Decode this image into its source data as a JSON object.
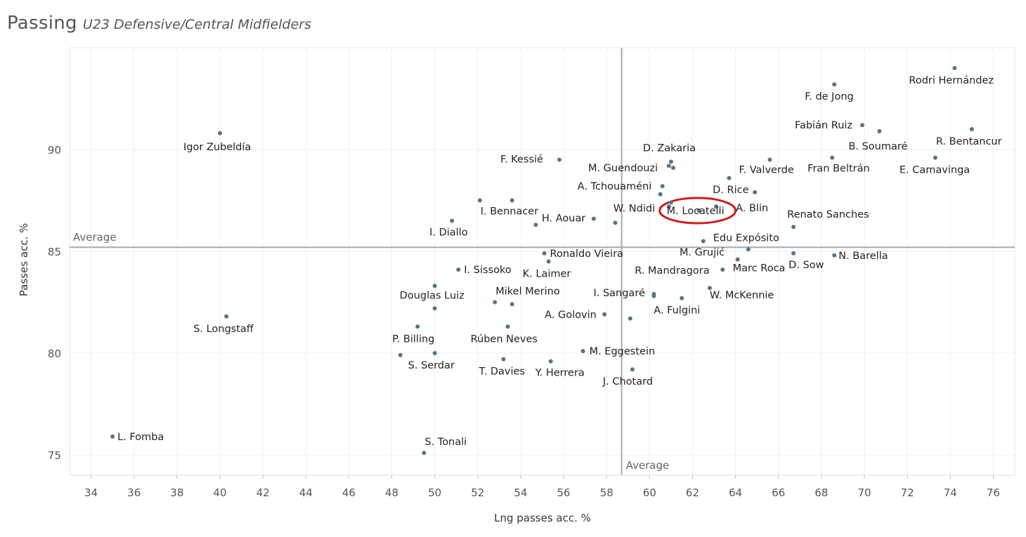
{
  "header": {
    "title": "Passing",
    "subtitle": "U23 Defensive/Central Midfielders"
  },
  "chart_data": {
    "type": "scatter",
    "xlabel": "Lng passes acc. %",
    "ylabel": "Passes acc. %",
    "xlim": [
      33,
      77
    ],
    "ylim": [
      74,
      95
    ],
    "x_ticks": [
      "34",
      "36",
      "38",
      "40",
      "42",
      "44",
      "46",
      "48",
      "50",
      "52",
      "54",
      "56",
      "58",
      "60",
      "62",
      "64",
      "66",
      "68",
      "70",
      "72",
      "74",
      "76"
    ],
    "y_ticks": [
      "75",
      "80",
      "85",
      "90"
    ],
    "grid": true,
    "reference_lines": {
      "x_average": 58.7,
      "y_average": 85.2,
      "x_label": "Average",
      "y_label": "Average"
    },
    "highlighted": "M. Locatelli",
    "colors": {
      "point": "#5b7386",
      "reference": "#aaaaaa",
      "highlight": "#cc1f1f",
      "grid": "#eeeeee"
    },
    "points": [
      {
        "name": "Rodri Hernández",
        "x": 74.2,
        "y": 94.0
      },
      {
        "name": "F. de Jong",
        "x": 68.6,
        "y": 93.2
      },
      {
        "name": "Fabián Ruiz",
        "x": 69.9,
        "y": 91.2
      },
      {
        "name": "B. Soumaré",
        "x": 70.7,
        "y": 90.9
      },
      {
        "name": "R. Bentancur",
        "x": 75.0,
        "y": 91.0
      },
      {
        "name": "Igor Zubeldía",
        "x": 40.0,
        "y": 90.8
      },
      {
        "name": "E. Camavinga",
        "x": 73.3,
        "y": 89.6
      },
      {
        "name": "Fran Beltrán",
        "x": 68.5,
        "y": 89.6
      },
      {
        "name": "F. Valverde",
        "x": 65.6,
        "y": 89.5
      },
      {
        "name": "D. Zakaria",
        "x": 61.0,
        "y": 89.4
      },
      {
        "name": "D. Zakaria",
        "x": 60.9,
        "y": 89.2
      },
      {
        "name": "M. Guendouzi",
        "x": 61.1,
        "y": 89.1
      },
      {
        "name": "F. Kessié",
        "x": 55.8,
        "y": 89.5
      },
      {
        "name": "F. Valverde",
        "x": 63.7,
        "y": 88.6
      },
      {
        "name": "A. Tchouaméni",
        "x": 60.6,
        "y": 88.2
      },
      {
        "name": "A. Tchouaméni",
        "x": 60.5,
        "y": 87.8
      },
      {
        "name": "D. Rice",
        "x": 64.9,
        "y": 87.9
      },
      {
        "name": "I. Bennacer",
        "x": 52.1,
        "y": 87.5
      },
      {
        "name": "I. Bennacer",
        "x": 53.6,
        "y": 87.5
      },
      {
        "name": "W. Ndidi",
        "x": 61.0,
        "y": 87.4
      },
      {
        "name": "W. Ndidi",
        "x": 60.9,
        "y": 87.2
      },
      {
        "name": "A. Blin",
        "x": 63.1,
        "y": 87.2
      },
      {
        "name": "I. Diallo",
        "x": 50.8,
        "y": 86.5
      },
      {
        "name": "H. Aouar",
        "x": 57.4,
        "y": 86.6
      },
      {
        "name": "H. Aouar",
        "x": 58.4,
        "y": 86.4
      },
      {
        "name": "H. Aouar",
        "x": 54.7,
        "y": 86.3
      },
      {
        "name": "Renato Sanches",
        "x": 66.7,
        "y": 86.2
      },
      {
        "name": "Edu Expósito",
        "x": 62.5,
        "y": 85.5
      },
      {
        "name": "M. Grujić",
        "x": 64.6,
        "y": 85.1
      },
      {
        "name": "Ronaldo Vieira",
        "x": 55.1,
        "y": 84.9
      },
      {
        "name": "D. Sow",
        "x": 66.7,
        "y": 84.9
      },
      {
        "name": "N. Barella",
        "x": 68.6,
        "y": 84.8
      },
      {
        "name": "Marc Roca",
        "x": 64.1,
        "y": 84.6
      },
      {
        "name": "K. Laimer",
        "x": 55.3,
        "y": 84.5
      },
      {
        "name": "R. Mandragora",
        "x": 63.4,
        "y": 84.1
      },
      {
        "name": "I. Sissoko",
        "x": 51.1,
        "y": 84.1
      },
      {
        "name": "Douglas Luiz",
        "x": 50.0,
        "y": 83.3
      },
      {
        "name": "W. McKennie",
        "x": 62.8,
        "y": 83.2
      },
      {
        "name": "I. Sangaré",
        "x": 60.2,
        "y": 82.9
      },
      {
        "name": "I. Sangaré",
        "x": 60.2,
        "y": 82.8
      },
      {
        "name": "A. Fulgini",
        "x": 61.5,
        "y": 82.7
      },
      {
        "name": "Mikel Merino",
        "x": 52.8,
        "y": 82.5
      },
      {
        "name": "Mikel Merino",
        "x": 53.6,
        "y": 82.4
      },
      {
        "name": "Douglas Luiz",
        "x": 50.0,
        "y": 82.2
      },
      {
        "name": "A. Golovin",
        "x": 57.9,
        "y": 81.9
      },
      {
        "name": "A. Golovin",
        "x": 59.1,
        "y": 81.7
      },
      {
        "name": "S. Longstaff",
        "x": 40.3,
        "y": 81.8
      },
      {
        "name": "Rúben Neves",
        "x": 53.4,
        "y": 81.3
      },
      {
        "name": "P. Billing",
        "x": 49.2,
        "y": 81.3
      },
      {
        "name": "M. Eggestein",
        "x": 56.9,
        "y": 80.1
      },
      {
        "name": "S. Serdar",
        "x": 50.0,
        "y": 80.0
      },
      {
        "name": "S. Serdar",
        "x": 48.4,
        "y": 79.9
      },
      {
        "name": "T. Davies",
        "x": 53.2,
        "y": 79.7
      },
      {
        "name": "Y. Herrera",
        "x": 55.4,
        "y": 79.6
      },
      {
        "name": "J. Chotard",
        "x": 59.2,
        "y": 79.2
      },
      {
        "name": "L. Fomba",
        "x": 35.0,
        "y": 75.9
      },
      {
        "name": "S. Tonali",
        "x": 49.5,
        "y": 75.1
      },
      {
        "name": "M. Locatelli",
        "x": 62.3,
        "y": 87.0
      }
    ],
    "labels": [
      {
        "text": "Rodri Hernández",
        "x": 74.2,
        "y": 94.0,
        "dx": -65,
        "dy": 22
      },
      {
        "text": "F. de Jong",
        "x": 68.6,
        "y": 93.2,
        "dx": -42,
        "dy": 22
      },
      {
        "text": "Fabián Ruiz",
        "x": 69.9,
        "y": 91.2,
        "dx": -96,
        "dy": 5
      },
      {
        "text": "B. Soumaré",
        "x": 70.7,
        "y": 90.9,
        "dx": -44,
        "dy": 26
      },
      {
        "text": "R. Bentancur",
        "x": 75.0,
        "y": 91.0,
        "dx": -51,
        "dy": 22
      },
      {
        "text": "Igor Zubeldía",
        "x": 40.0,
        "y": 90.8,
        "dx": -52,
        "dy": 24
      },
      {
        "text": "E. Camavinga",
        "x": 73.3,
        "y": 89.6,
        "dx": -51,
        "dy": 22
      },
      {
        "text": "Fran Beltrán",
        "x": 68.5,
        "y": 89.6,
        "dx": -35,
        "dy": 20
      },
      {
        "text": "F. Valverde",
        "x": 65.6,
        "y": 89.5,
        "dx": -44,
        "dy": 19
      },
      {
        "text": "D. Zakaria",
        "x": 61.0,
        "y": 89.4,
        "dx": -40,
        "dy": -15
      },
      {
        "text": "M. Guendouzi",
        "x": 61.1,
        "y": 89.1,
        "dx": -121,
        "dy": 5
      },
      {
        "text": "F. Kessié",
        "x": 55.8,
        "y": 89.5,
        "dx": -84,
        "dy": 4
      },
      {
        "text": "A. Tchouaméni",
        "x": 60.6,
        "y": 88.2,
        "dx": -121,
        "dy": 5
      },
      {
        "text": "D. Rice",
        "x": 64.9,
        "y": 87.9,
        "dx": -60,
        "dy": 1
      },
      {
        "text": "I. Bennacer",
        "x": 53.6,
        "y": 87.5,
        "dx": -45,
        "dy": 20
      },
      {
        "text": "W. Ndidi",
        "x": 61.0,
        "y": 87.4,
        "dx": -82,
        "dy": 13
      },
      {
        "text": "A. Blin",
        "x": 63.1,
        "y": 87.2,
        "dx": 28,
        "dy": 7
      },
      {
        "text": "I. Diallo",
        "x": 50.8,
        "y": 86.5,
        "dx": -32,
        "dy": 21
      },
      {
        "text": "H. Aouar",
        "x": 57.4,
        "y": 86.6,
        "dx": -74,
        "dy": 4
      },
      {
        "text": "Renato Sanches",
        "x": 66.7,
        "y": 86.2,
        "dx": -9,
        "dy": -13
      },
      {
        "text": "Edu Expósito",
        "x": 62.5,
        "y": 85.5,
        "dx": 14,
        "dy": 0
      },
      {
        "text": "M. Grujić",
        "x": 64.6,
        "y": 85.1,
        "dx": -98,
        "dy": 9
      },
      {
        "text": "Ronaldo Vieira",
        "x": 55.1,
        "y": 84.9,
        "dx": 8,
        "dy": 5
      },
      {
        "text": "D. Sow",
        "x": 66.7,
        "y": 84.9,
        "dx": -7,
        "dy": 21
      },
      {
        "text": "N. Barella",
        "x": 68.6,
        "y": 84.8,
        "dx": 6,
        "dy": 5
      },
      {
        "text": "Marc Roca",
        "x": 64.1,
        "y": 84.6,
        "dx": -7,
        "dy": 17
      },
      {
        "text": "K. Laimer",
        "x": 55.3,
        "y": 84.5,
        "dx": -37,
        "dy": 22
      },
      {
        "text": "R. Mandragora",
        "x": 63.4,
        "y": 84.1,
        "dx": -125,
        "dy": 6
      },
      {
        "text": "I. Sissoko",
        "x": 51.1,
        "y": 84.1,
        "dx": 8,
        "dy": 5
      },
      {
        "text": "Douglas Luiz",
        "x": 50.0,
        "y": 83.3,
        "dx": -50,
        "dy": 18
      },
      {
        "text": "W. McKennie",
        "x": 62.8,
        "y": 83.2,
        "dx": 0,
        "dy": 15
      },
      {
        "text": "I. Sangaré",
        "x": 60.2,
        "y": 82.9,
        "dx": -86,
        "dy": 3
      },
      {
        "text": "A. Fulgini",
        "x": 61.5,
        "y": 82.7,
        "dx": -40,
        "dy": 22
      },
      {
        "text": "Mikel Merino",
        "x": 52.8,
        "y": 82.5,
        "dx": 1,
        "dy": -11
      },
      {
        "text": "A. Golovin",
        "x": 57.9,
        "y": 81.9,
        "dx": -85,
        "dy": 5
      },
      {
        "text": "S. Longstaff",
        "x": 40.3,
        "y": 81.8,
        "dx": -47,
        "dy": 22
      },
      {
        "text": "Rúben Neves",
        "x": 53.4,
        "y": 81.3,
        "dx": -53,
        "dy": 22
      },
      {
        "text": "P. Billing",
        "x": 49.2,
        "y": 81.3,
        "dx": -36,
        "dy": 22
      },
      {
        "text": "M. Eggestein",
        "x": 56.9,
        "y": 80.1,
        "dx": 9,
        "dy": 5
      },
      {
        "text": "S. Serdar",
        "x": 50.0,
        "y": 80.0,
        "dx": -38,
        "dy": 22
      },
      {
        "text": "T. Davies",
        "x": 53.2,
        "y": 79.7,
        "dx": -35,
        "dy": 22
      },
      {
        "text": "Y. Herrera",
        "x": 55.4,
        "y": 79.6,
        "dx": -22,
        "dy": 21
      },
      {
        "text": "J. Chotard",
        "x": 59.2,
        "y": 79.2,
        "dx": -42,
        "dy": 22
      },
      {
        "text": "L. Fomba",
        "x": 35.0,
        "y": 75.9,
        "dx": 7,
        "dy": 5
      },
      {
        "text": "S. Tonali",
        "x": 49.5,
        "y": 75.1,
        "dx": 1,
        "dy": -11
      },
      {
        "text": "M. Locatelli",
        "x": 62.3,
        "y": 87.0,
        "dx": -46,
        "dy": 5
      }
    ]
  }
}
